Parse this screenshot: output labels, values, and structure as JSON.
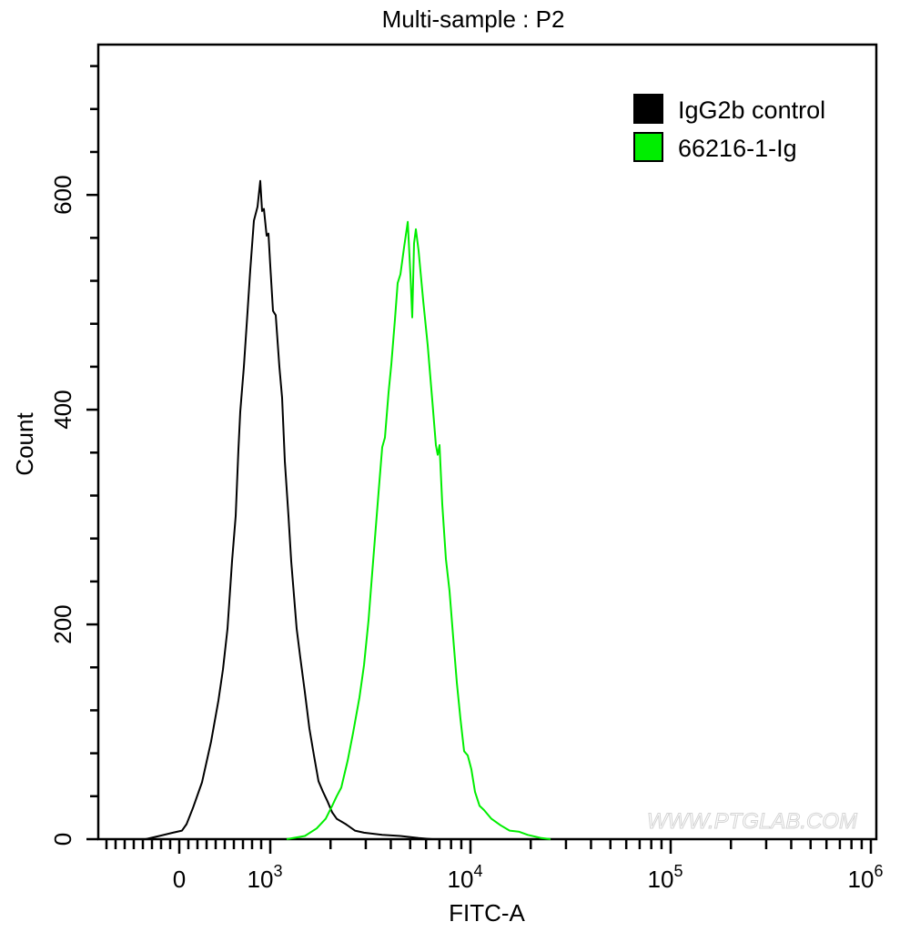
{
  "chart_data": {
    "type": "line",
    "title": "Multi-sample : P2",
    "xlabel": "FITC-A",
    "ylabel": "Count",
    "x_scale": "biexponential",
    "xlim": [
      -890,
      1000000
    ],
    "ylim": [
      0,
      740
    ],
    "grid": false,
    "legend_position": "top-right",
    "y_ticks": [
      0,
      200,
      400,
      600
    ],
    "y_tick_labels": [
      "0",
      "200",
      "400",
      "600"
    ],
    "x_ticks": [
      {
        "value": 0,
        "base": "0",
        "exp": ""
      },
      {
        "value": 1000,
        "base": "10",
        "exp": "3"
      },
      {
        "value": 10000,
        "base": "10",
        "exp": "4"
      },
      {
        "value": 100000,
        "base": "10",
        "exp": "5"
      },
      {
        "value": 1000000,
        "base": "10",
        "exp": "6"
      }
    ],
    "series": [
      {
        "name": "IgG2b control",
        "color": "#000000",
        "points": [
          [
            -370,
            0
          ],
          [
            -220,
            3
          ],
          [
            -70,
            6
          ],
          [
            30,
            8
          ],
          [
            80,
            14
          ],
          [
            150,
            29
          ],
          [
            250,
            53
          ],
          [
            350,
            91
          ],
          [
            430,
            129
          ],
          [
            480,
            158
          ],
          [
            530,
            196
          ],
          [
            580,
            259
          ],
          [
            620,
            301
          ],
          [
            650,
            363
          ],
          [
            670,
            398
          ],
          [
            710,
            440
          ],
          [
            750,
            491
          ],
          [
            780,
            530
          ],
          [
            820,
            576
          ],
          [
            860,
            589
          ],
          [
            890,
            613
          ],
          [
            910,
            585
          ],
          [
            930,
            587
          ],
          [
            960,
            562
          ],
          [
            980,
            564
          ],
          [
            1000,
            534
          ],
          [
            1032,
            492
          ],
          [
            1065,
            488
          ],
          [
            1110,
            440
          ],
          [
            1146,
            411
          ],
          [
            1182,
            352
          ],
          [
            1233,
            301
          ],
          [
            1272,
            259
          ],
          [
            1299,
            238
          ],
          [
            1355,
            196
          ],
          [
            1413,
            169
          ],
          [
            1488,
            137
          ],
          [
            1569,
            103
          ],
          [
            1653,
            78
          ],
          [
            1742,
            54
          ],
          [
            1835,
            44
          ],
          [
            1934,
            35
          ],
          [
            2038,
            25
          ],
          [
            2147,
            19
          ],
          [
            2384,
            14
          ],
          [
            2647,
            8
          ],
          [
            2939,
            6
          ],
          [
            3624,
            4
          ],
          [
            4467,
            3
          ],
          [
            5508,
            1
          ],
          [
            6445,
            0
          ]
        ]
      },
      {
        "name": "66216-1-Ig",
        "color": "#00ee00",
        "points": [
          [
            1207,
            0
          ],
          [
            1488,
            3
          ],
          [
            1705,
            10
          ],
          [
            1891,
            19
          ],
          [
            2038,
            31
          ],
          [
            2147,
            40
          ],
          [
            2262,
            48
          ],
          [
            2434,
            73
          ],
          [
            2592,
            99
          ],
          [
            2790,
            132
          ],
          [
            2939,
            162
          ],
          [
            3097,
            204
          ],
          [
            3195,
            237
          ],
          [
            3332,
            280
          ],
          [
            3474,
            323
          ],
          [
            3624,
            365
          ],
          [
            3738,
            374
          ],
          [
            3898,
            416
          ],
          [
            4022,
            442
          ],
          [
            4195,
            484
          ],
          [
            4329,
            518
          ],
          [
            4467,
            526
          ],
          [
            4659,
            551
          ],
          [
            4860,
            575
          ],
          [
            5012,
            526
          ],
          [
            5120,
            486
          ],
          [
            5226,
            555
          ],
          [
            5337,
            568
          ],
          [
            5508,
            548
          ],
          [
            5801,
            502
          ],
          [
            6113,
            460
          ],
          [
            6445,
            409
          ],
          [
            6720,
            367
          ],
          [
            6863,
            358
          ],
          [
            7006,
            367
          ],
          [
            7229,
            312
          ],
          [
            7542,
            261
          ],
          [
            7862,
            231
          ],
          [
            8198,
            188
          ],
          [
            8547,
            146
          ],
          [
            8913,
            112
          ],
          [
            9294,
            82
          ],
          [
            9691,
            78
          ],
          [
            10105,
            65
          ],
          [
            10537,
            44
          ],
          [
            11107,
            31
          ],
          [
            11701,
            27
          ],
          [
            12723,
            19
          ],
          [
            14125,
            13
          ],
          [
            15689,
            8
          ],
          [
            17418,
            7
          ],
          [
            19341,
            4
          ],
          [
            22622,
            1
          ],
          [
            25119,
            0
          ]
        ]
      }
    ],
    "watermark": "WWW.PTGLAB.COM"
  }
}
